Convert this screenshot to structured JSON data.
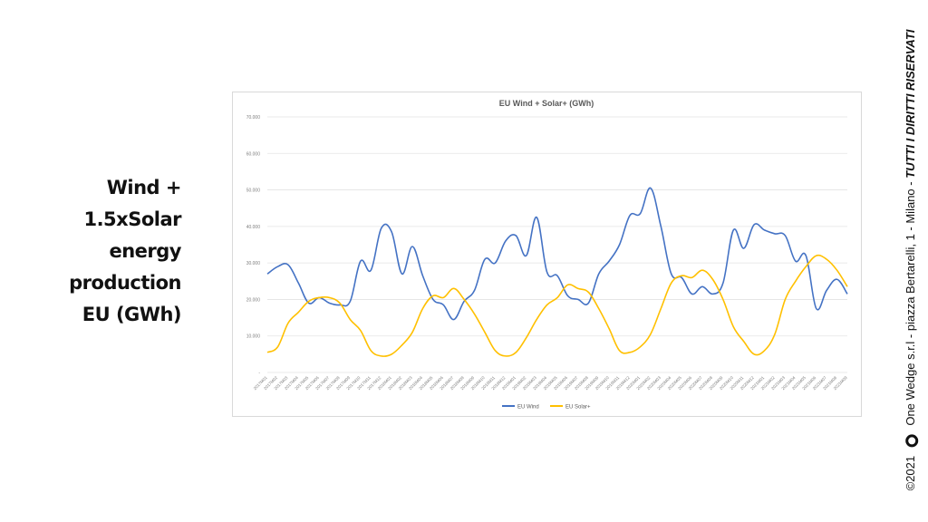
{
  "slide": {
    "title_lines": [
      "Wind +",
      "1.5xSolar",
      "energy",
      "production",
      "EU (GWh)"
    ]
  },
  "footer": {
    "copyright": "©2021",
    "company": "One Wedge s.r.l - piazza Bertarelli, 1 - Milano -",
    "rights": "TUTTI I DIRITTI RISERVATI"
  },
  "colors": {
    "wind": "#4472c4",
    "solar": "#ffc000",
    "grid": "#e3e3e3",
    "axis_text": "#7f7f7f"
  },
  "chart_data": {
    "type": "line",
    "title": "EU Wind + Solar+ (GWh)",
    "ylim": [
      0,
      70000
    ],
    "yticks": [
      "-",
      "10.000",
      "20.000",
      "30.000",
      "40.000",
      "50.000",
      "60.000",
      "70.000"
    ],
    "ytick_values": [
      0,
      10000,
      20000,
      30000,
      40000,
      50000,
      60000,
      70000
    ],
    "grid": true,
    "legend_position": "bottom",
    "x": [
      "2017M01",
      "2017M02",
      "2017M03",
      "2017M04",
      "2017M05",
      "2017M06",
      "2017M07",
      "2017M08",
      "2017M09",
      "2017M10",
      "2017M11",
      "2017M12",
      "2018M01",
      "2018M02",
      "2018M03",
      "2018M04",
      "2018M05",
      "2018M06",
      "2018M07",
      "2018M08",
      "2018M09",
      "2018M10",
      "2018M11",
      "2018M12",
      "2019M01",
      "2019M02",
      "2019M03",
      "2019M04",
      "2019M05",
      "2019M06",
      "2019M07",
      "2019M08",
      "2019M09",
      "2019M10",
      "2019M11",
      "2019M12",
      "2020M01",
      "2020M02",
      "2020M03",
      "2020M04",
      "2020M05",
      "2020M06",
      "2020M07",
      "2020M08",
      "2020M09",
      "2020M10",
      "2020M11",
      "2020M12",
      "2021M01",
      "2021M02",
      "2021M03",
      "2021M04",
      "2021M05",
      "2021M06",
      "2021M07",
      "2021M08",
      "2021M09"
    ],
    "series": [
      {
        "name": "EU Wind",
        "color": "#4472c4",
        "values": [
          27000,
          29000,
          29500,
          24500,
          19000,
          20500,
          19000,
          18500,
          19500,
          30500,
          28000,
          39500,
          38500,
          27000,
          34500,
          26500,
          20000,
          18500,
          14500,
          19500,
          22500,
          31000,
          30000,
          36000,
          37500,
          32000,
          42500,
          27500,
          26500,
          21000,
          20000,
          19000,
          27000,
          30500,
          35000,
          43000,
          43500,
          50500,
          40000,
          27000,
          26000,
          21500,
          23500,
          21500,
          24500,
          39000,
          34000,
          40500,
          39000,
          38000,
          37500,
          30500,
          32000,
          17500,
          22500,
          25500,
          21500
        ]
      },
      {
        "name": "EU Solar+",
        "color": "#ffc000",
        "values": [
          5500,
          7000,
          13500,
          16500,
          19500,
          20500,
          20500,
          19000,
          14500,
          11500,
          6000,
          4500,
          5000,
          7500,
          11000,
          17500,
          21000,
          20500,
          23000,
          20000,
          16000,
          11000,
          6000,
          4500,
          5500,
          9500,
          14500,
          18500,
          20500,
          24000,
          23000,
          22000,
          17500,
          12000,
          6000,
          5500,
          7000,
          10500,
          17500,
          24500,
          26500,
          26000,
          28000,
          25500,
          20000,
          12500,
          8500,
          5000,
          6000,
          10500,
          20000,
          25000,
          29000,
          32000,
          31000,
          28000,
          23500
        ]
      }
    ]
  }
}
